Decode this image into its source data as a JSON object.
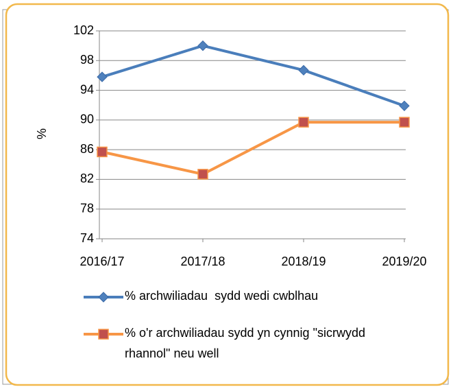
{
  "chart_data": {
    "type": "line",
    "y_label": "%",
    "categories": [
      "2016/17",
      "2017/18",
      "2018/19",
      "2019/20"
    ],
    "series": [
      {
        "name": "% archwiliadau  sydd wedi cwblhau",
        "color": "#4a7ebb",
        "marker": "diamond",
        "values": [
          95.8,
          100,
          96.7,
          91.9
        ]
      },
      {
        "name": "% o'r archwiliadau sydd yn cynnig \"sicrwydd rhannol\" neu well",
        "color": "#f79646",
        "marker": "square",
        "values": [
          85.7,
          82.7,
          89.7,
          89.7
        ]
      }
    ],
    "ylim": [
      74,
      102
    ],
    "yticks": [
      74,
      78,
      82,
      86,
      90,
      94,
      98,
      102
    ],
    "grid": true
  }
}
